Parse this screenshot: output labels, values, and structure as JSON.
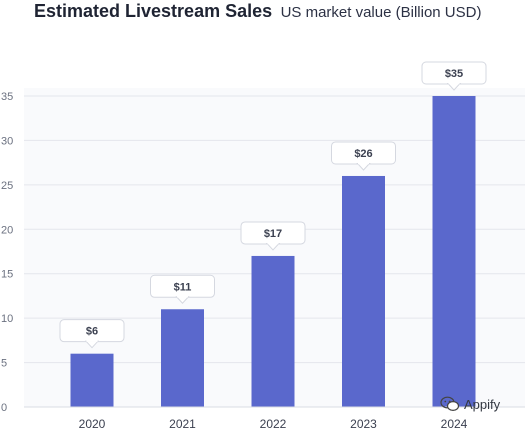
{
  "chart_data": {
    "type": "bar",
    "title": "Estimated Livestream Sales",
    "subtitle": "US market value (Billion USD)",
    "xlabel": "",
    "ylabel": "",
    "categories": [
      "2020",
      "2021",
      "2022",
      "2023",
      "2024"
    ],
    "values": [
      6,
      11,
      17,
      26,
      35
    ],
    "data_labels": [
      "$6",
      "$11",
      "$17",
      "$26",
      "$35"
    ],
    "ylim": [
      0,
      35
    ],
    "yticks": [
      0,
      5,
      10,
      15,
      20,
      25,
      30,
      35
    ],
    "grid": true,
    "legend": "none",
    "bar_color": "#5a68cc"
  },
  "watermark": {
    "icon": "wechat-icon",
    "text": "Appify"
  }
}
